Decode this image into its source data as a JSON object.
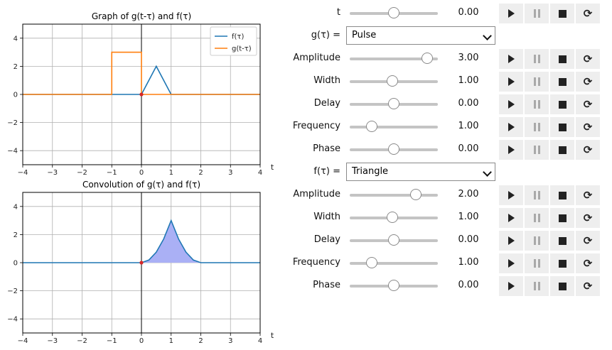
{
  "chart_data": [
    {
      "type": "line",
      "title": "Graph of g(t-τ) and f(τ)",
      "xlabel": "t",
      "xlim": [
        -4,
        4
      ],
      "ylim": [
        -5,
        5
      ],
      "xticks": [
        -4,
        -3,
        -2,
        -1,
        0,
        1,
        2,
        3,
        4
      ],
      "yticks": [
        -4,
        -2,
        0,
        2,
        4
      ],
      "xtick_labels": [
        "−4",
        "−3",
        "−2",
        "−1",
        "0",
        "1",
        "2",
        "3",
        "4"
      ],
      "ytick_labels": [
        "−4",
        "−2",
        "0",
        "2",
        "4"
      ],
      "grid": true,
      "legend": "top-right",
      "marker": {
        "x": 0,
        "y": 0,
        "color": "#d62728"
      },
      "series": [
        {
          "name": "f(τ)",
          "color": "#1f77b4",
          "x": [
            -4,
            0,
            0.5,
            1,
            4
          ],
          "y": [
            0,
            0,
            2,
            0,
            0
          ]
        },
        {
          "name": "g(t-τ)",
          "color": "#ff7f0e",
          "x": [
            -4,
            -1,
            -1,
            0,
            0,
            4
          ],
          "y": [
            0,
            0,
            3,
            3,
            0,
            0
          ]
        }
      ]
    },
    {
      "type": "area",
      "title": "Convolution of g(τ) and f(τ)",
      "xlabel": "t",
      "xlim": [
        -4,
        4
      ],
      "ylim": [
        -5,
        5
      ],
      "xticks": [
        -4,
        -3,
        -2,
        -1,
        0,
        1,
        2,
        3,
        4
      ],
      "yticks": [
        -4,
        -2,
        0,
        2,
        4
      ],
      "xtick_labels": [
        "−4",
        "−3",
        "−2",
        "−1",
        "0",
        "1",
        "2",
        "3",
        "4"
      ],
      "ytick_labels": [
        "−4",
        "−2",
        "0",
        "2",
        "4"
      ],
      "grid": true,
      "marker": {
        "x": 0,
        "y": 0,
        "color": "#d62728"
      },
      "fill": {
        "color": "#aab0f5",
        "from_x": 0
      },
      "series": [
        {
          "color": "#1f77b4",
          "x": [
            -4,
            0,
            0.25,
            0.5,
            0.75,
            1,
            1.25,
            1.5,
            1.75,
            2,
            4
          ],
          "y": [
            0,
            0,
            0.1875,
            0.75,
            1.6875,
            3,
            1.6875,
            0.75,
            0.1875,
            0,
            0
          ]
        }
      ]
    }
  ],
  "controls": {
    "t": {
      "label": "t",
      "value": "0.00",
      "fraction": 0.5
    },
    "g_select": {
      "label": "g(τ) =",
      "value": "Pulse"
    },
    "g_params": [
      {
        "label": "Amplitude",
        "value": "3.00",
        "fraction": 0.875
      },
      {
        "label": "Width",
        "value": "1.00",
        "fraction": 0.48
      },
      {
        "label": "Delay",
        "value": "0.00",
        "fraction": 0.5
      },
      {
        "label": "Frequency",
        "value": "1.00",
        "fraction": 0.25
      },
      {
        "label": "Phase",
        "value": "0.00",
        "fraction": 0.5
      }
    ],
    "f_select": {
      "label": "f(τ) =",
      "value": "Triangle"
    },
    "f_params": [
      {
        "label": "Amplitude",
        "value": "2.00",
        "fraction": 0.75
      },
      {
        "label": "Width",
        "value": "1.00",
        "fraction": 0.48
      },
      {
        "label": "Delay",
        "value": "0.00",
        "fraction": 0.5
      },
      {
        "label": "Frequency",
        "value": "1.00",
        "fraction": 0.25
      },
      {
        "label": "Phase",
        "value": "0.00",
        "fraction": 0.5
      }
    ]
  },
  "icons": {
    "play": "play-icon",
    "pause": "pause-icon",
    "stop": "stop-icon",
    "loop": "loop-icon"
  }
}
